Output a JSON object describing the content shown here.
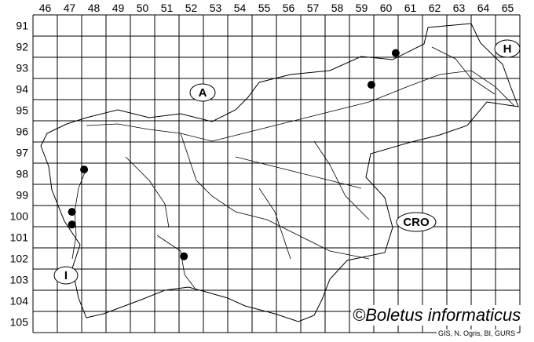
{
  "map": {
    "column_labels": [
      "46",
      "47",
      "48",
      "49",
      "50",
      "51",
      "52",
      "53",
      "54",
      "55",
      "56",
      "57",
      "58",
      "59",
      "60",
      "61",
      "62",
      "63",
      "64",
      "65"
    ],
    "row_labels": [
      "91",
      "92",
      "93",
      "94",
      "95",
      "96",
      "97",
      "98",
      "99",
      "100",
      "101",
      "102",
      "103",
      "104",
      "105"
    ],
    "country_labels": {
      "austria": "A",
      "hungary": "H",
      "croatia": "CRO",
      "italy": "I"
    },
    "records": [
      {
        "col": 60.9,
        "row": 92.8
      },
      {
        "col": 59.9,
        "row": 94.3
      },
      {
        "col": 48.1,
        "row": 98.3
      },
      {
        "col": 47.6,
        "row": 100.3
      },
      {
        "col": 47.6,
        "row": 100.9
      },
      {
        "col": 52.2,
        "row": 102.4
      }
    ],
    "record_color": "#000000"
  },
  "credits": {
    "main": "©Boletus informaticus",
    "sub": "GIS, N. Ogris, BI, GURS"
  }
}
